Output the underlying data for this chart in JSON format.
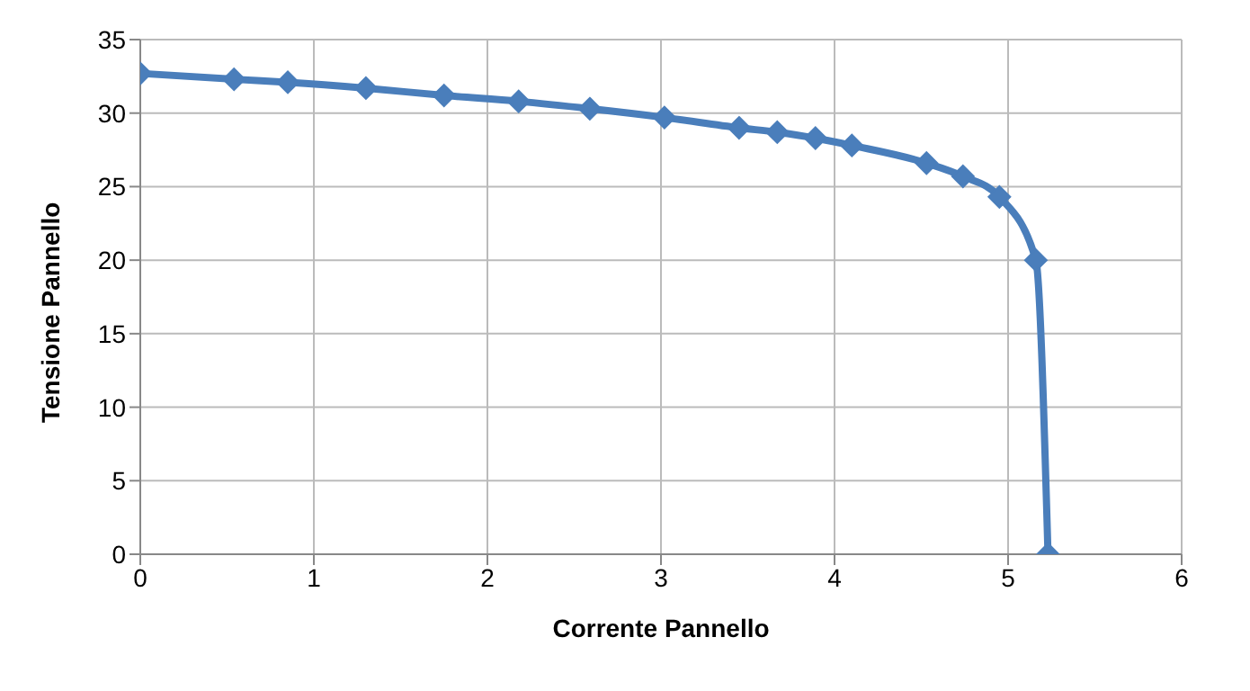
{
  "chart_data": {
    "type": "line",
    "xlabel": "Corrente Pannello",
    "ylabel": "Tensione Pannello",
    "x": [
      0,
      0.54,
      0.85,
      1.3,
      1.75,
      2.18,
      2.59,
      3.02,
      3.45,
      3.67,
      3.89,
      4.1,
      4.53,
      4.74,
      4.95,
      5.16,
      5.23
    ],
    "series": [
      {
        "color": "#4a7ebb",
        "values": [
          32.7,
          32.3,
          32.1,
          31.7,
          31.2,
          30.8,
          30.3,
          29.7,
          29,
          28.7,
          28.3,
          27.8,
          26.6,
          25.7,
          24.3,
          20,
          0
        ]
      }
    ],
    "xlim": [
      0,
      6
    ],
    "xticks": [
      0,
      1,
      2,
      3,
      4,
      5,
      6
    ],
    "ylim": [
      0,
      35
    ],
    "yticks": [
      0,
      5,
      10,
      15,
      20,
      25,
      30,
      35
    ],
    "grid": true,
    "marker": "diamond",
    "line_style": "solid"
  }
}
